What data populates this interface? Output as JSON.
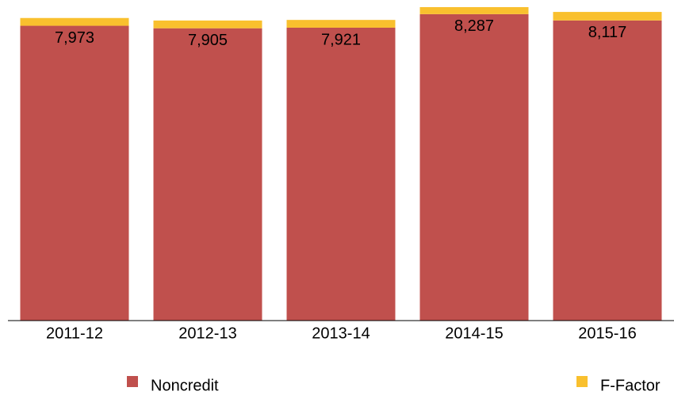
{
  "chart_data": {
    "type": "stacked-bar",
    "categories": [
      "2011-12",
      "2012-13",
      "2013-14",
      "2014-15",
      "2015-16"
    ],
    "series": [
      {
        "name": "Noncredit",
        "color": "#c0504d",
        "values": [
          7973,
          7905,
          7921,
          8287,
          8117
        ],
        "value_labels": [
          "7,973",
          "7,905",
          "7,921",
          "8,287",
          "8,117"
        ]
      },
      {
        "name": "F-Factor",
        "color": "#f9c02e",
        "values": [
          210,
          210,
          210,
          190,
          230
        ]
      }
    ]
  }
}
